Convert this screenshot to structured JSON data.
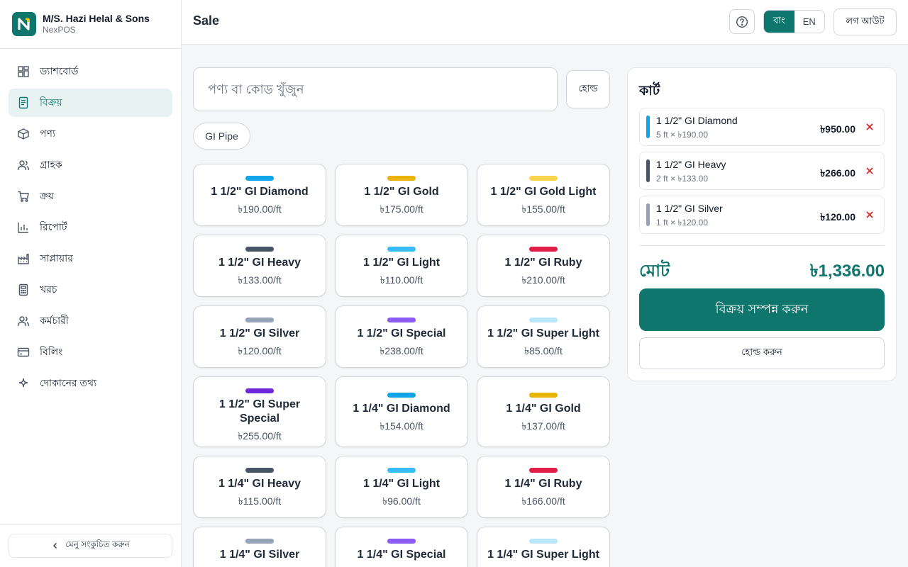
{
  "brand": {
    "title": "M/S. Hazi Helal & Sons",
    "subtitle": "NexPOS"
  },
  "sidebar": {
    "items": [
      {
        "label": "ড্যাশবোর্ড",
        "icon": "dashboard-icon",
        "active": false
      },
      {
        "label": "বিক্রয়",
        "icon": "receipt-icon",
        "active": true
      },
      {
        "label": "পণ্য",
        "icon": "box-icon",
        "active": false
      },
      {
        "label": "গ্রাহক",
        "icon": "users-icon",
        "active": false
      },
      {
        "label": "ক্রয়",
        "icon": "cart-icon",
        "active": false
      },
      {
        "label": "রিপোর্ট",
        "icon": "bar-chart-icon",
        "active": false
      },
      {
        "label": "সাপ্লায়ার",
        "icon": "factory-icon",
        "active": false
      },
      {
        "label": "খরচ",
        "icon": "calculator-icon",
        "active": false
      },
      {
        "label": "কর্মচারী",
        "icon": "employees-icon",
        "active": false
      },
      {
        "label": "বিলিং",
        "icon": "credit-card-icon",
        "active": false
      },
      {
        "label": "দোকানের তথ্য",
        "icon": "sparkle-icon",
        "active": false
      }
    ],
    "collapse_label": "মেনু সংকুচিত করুন"
  },
  "header": {
    "title": "Sale",
    "lang_bn": "বাং",
    "lang_en": "EN",
    "active_lang": "bn",
    "logout_label": "লগ আউট"
  },
  "search": {
    "placeholder": "পণ্য বা কোড খুঁজুন",
    "value": ""
  },
  "hold_label": "হোল্ড",
  "category_chip": "GI Pipe",
  "products": [
    {
      "name": "1 1/2\" GI Diamond",
      "price": "৳190.00/ft",
      "color": "#0ea5e9"
    },
    {
      "name": "1 1/2\" GI Gold",
      "price": "৳175.00/ft",
      "color": "#eab308"
    },
    {
      "name": "1 1/2\" GI Gold Light",
      "price": "৳155.00/ft",
      "color": "#fcd34d"
    },
    {
      "name": "1 1/2\" GI Heavy",
      "price": "৳133.00/ft",
      "color": "#475569"
    },
    {
      "name": "1 1/2\" GI Light",
      "price": "৳110.00/ft",
      "color": "#38bdf8"
    },
    {
      "name": "1 1/2\" GI Ruby",
      "price": "৳210.00/ft",
      "color": "#e11d48"
    },
    {
      "name": "1 1/2\" GI Silver",
      "price": "৳120.00/ft",
      "color": "#94a3b8"
    },
    {
      "name": "1 1/2\" GI Special",
      "price": "৳238.00/ft",
      "color": "#8b5cf6"
    },
    {
      "name": "1 1/2\" GI Super Light",
      "price": "৳85.00/ft",
      "color": "#bae6fd"
    },
    {
      "name": "1 1/2\" GI Super Special",
      "price": "৳255.00/ft",
      "color": "#6d28d9"
    },
    {
      "name": "1 1/4\" GI Diamond",
      "price": "৳154.00/ft",
      "color": "#0ea5e9"
    },
    {
      "name": "1 1/4\" GI Gold",
      "price": "৳137.00/ft",
      "color": "#eab308"
    },
    {
      "name": "1 1/4\" GI Heavy",
      "price": "৳115.00/ft",
      "color": "#475569"
    },
    {
      "name": "1 1/4\" GI Light",
      "price": "৳96.00/ft",
      "color": "#38bdf8"
    },
    {
      "name": "1 1/4\" GI Ruby",
      "price": "৳166.00/ft",
      "color": "#e11d48"
    },
    {
      "name": "1 1/4\" GI Silver",
      "price": "",
      "color": "#94a3b8"
    },
    {
      "name": "1 1/4\" GI Special",
      "price": "",
      "color": "#8b5cf6"
    },
    {
      "name": "1 1/4\" GI Super Light",
      "price": "",
      "color": "#bae6fd"
    }
  ],
  "cart": {
    "title": "কার্ট",
    "items": [
      {
        "name": "1 1/2\" GI Diamond",
        "qty": "5 ft × ৳190.00",
        "amount": "৳950.00",
        "color": "#0ea5e9"
      },
      {
        "name": "1 1/2\" GI Heavy",
        "qty": "2 ft × ৳133.00",
        "amount": "৳266.00",
        "color": "#475569"
      },
      {
        "name": "1 1/2\" GI Silver",
        "qty": "1 ft × ৳120.00",
        "amount": "৳120.00",
        "color": "#94a3b8"
      }
    ],
    "total_label": "মোট",
    "total_value": "৳1,336.00",
    "complete_label": "বিক্রয় সম্পন্ন করুন",
    "hold_label": "হোল্ড করুন"
  },
  "colors": {
    "accent": "#0f766e",
    "remove": "#dc2626"
  }
}
